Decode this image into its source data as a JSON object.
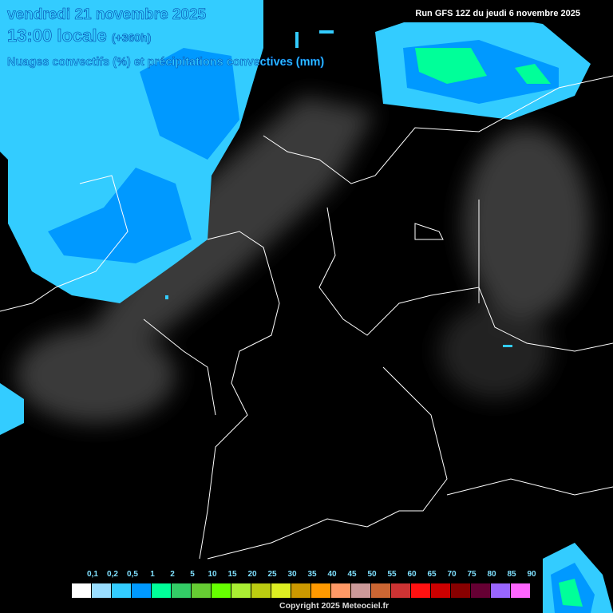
{
  "header": {
    "date": "vendredi 21 novembre 2025",
    "time": "13:00 locale",
    "lead": "(+360h)",
    "subtitle": "Nuages convectifs (%) et précipitations convectives (mm)",
    "run": "Run GFS 12Z du jeudi 6 novembre 2025"
  },
  "legend": {
    "labels": [
      "0,1",
      "0,2",
      "0,5",
      "1",
      "2",
      "5",
      "10",
      "15",
      "20",
      "25",
      "30",
      "35",
      "40",
      "45",
      "50",
      "55",
      "60",
      "65",
      "70",
      "75",
      "80",
      "85",
      "90"
    ],
    "colors": [
      "#ffffff",
      "#99ddff",
      "#33ccff",
      "#0099ff",
      "#00ff99",
      "#33cc66",
      "#66cc33",
      "#66ff00",
      "#aaee33",
      "#bbcc11",
      "#ddee22",
      "#cc9900",
      "#ff9900",
      "#ff9966",
      "#cc9999",
      "#cc6633",
      "#cc3333",
      "#ff1111",
      "#cc0000",
      "#880000",
      "#660033",
      "#9966ff",
      "#ff66ff"
    ]
  },
  "copyright": "Copyright 2025 Meteociel.fr",
  "colors": {
    "light_precip": "#33ccff",
    "mid_precip": "#0099ff",
    "heavy_precip": "#00ff99",
    "borders": "#ffffff",
    "cloud": "#555555"
  }
}
